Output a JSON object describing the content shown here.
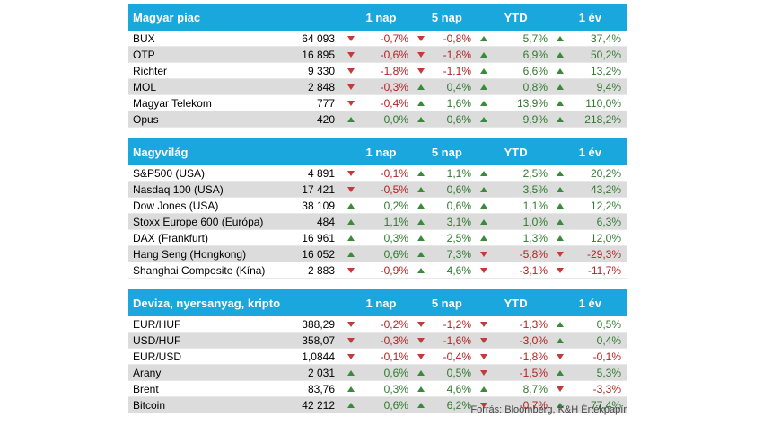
{
  "colors": {
    "header_bg": "#1aa7de",
    "up": "#3b8a3b",
    "down": "#c23b3b",
    "alt_row": "#dcdcdc"
  },
  "columns": [
    "1 nap",
    "5 nap",
    "YTD",
    "1 év"
  ],
  "sections": [
    {
      "title": "Magyar piac",
      "rows": [
        {
          "name": "BUX",
          "value": "64 093",
          "changes": [
            "-0,7%",
            "-0,8%",
            "5,7%",
            "37,4%"
          ]
        },
        {
          "name": "OTP",
          "value": "16 895",
          "changes": [
            "-0,6%",
            "-1,8%",
            "6,9%",
            "50,2%"
          ]
        },
        {
          "name": "Richter",
          "value": "9 330",
          "changes": [
            "-1,8%",
            "-1,1%",
            "6,6%",
            "13,2%"
          ]
        },
        {
          "name": "MOL",
          "value": "2 848",
          "changes": [
            "-0,3%",
            "0,4%",
            "0,8%",
            "9,4%"
          ]
        },
        {
          "name": "Magyar Telekom",
          "value": "777",
          "changes": [
            "-0,4%",
            "1,6%",
            "13,9%",
            "110,0%"
          ]
        },
        {
          "name": "Opus",
          "value": "420",
          "changes": [
            "0,0%",
            "0,6%",
            "9,9%",
            "218,2%"
          ]
        }
      ]
    },
    {
      "title": "Nagyvilág",
      "rows": [
        {
          "name": "S&P500 (USA)",
          "value": "4 891",
          "changes": [
            "-0,1%",
            "1,1%",
            "2,5%",
            "20,2%"
          ]
        },
        {
          "name": "Nasdaq 100 (USA)",
          "value": "17 421",
          "changes": [
            "-0,5%",
            "0,6%",
            "3,5%",
            "43,2%"
          ]
        },
        {
          "name": "Dow Jones (USA)",
          "value": "38 109",
          "changes": [
            "0,2%",
            "0,6%",
            "1,1%",
            "12,2%"
          ]
        },
        {
          "name": "Stoxx Europe 600 (Európa)",
          "value": "484",
          "changes": [
            "1,1%",
            "3,1%",
            "1,0%",
            "6,3%"
          ]
        },
        {
          "name": "DAX (Frankfurt)",
          "value": "16 961",
          "changes": [
            "0,3%",
            "2,5%",
            "1,3%",
            "12,0%"
          ]
        },
        {
          "name": "Hang Seng (Hongkong)",
          "value": "16 052",
          "changes": [
            "0,6%",
            "7,3%",
            "-5,8%",
            "-29,3%"
          ]
        },
        {
          "name": "Shanghai Composite (Kína)",
          "value": "2 883",
          "changes": [
            "-0,9%",
            "4,6%",
            "-3,1%",
            "-11,7%"
          ]
        }
      ]
    },
    {
      "title": "Deviza, nyersanyag, kripto",
      "rows": [
        {
          "name": "EUR/HUF",
          "value": "388,29",
          "changes": [
            "-0,2%",
            "-1,2%",
            "-1,3%",
            "0,5%"
          ]
        },
        {
          "name": "USD/HUF",
          "value": "358,07",
          "changes": [
            "-0,3%",
            "-1,6%",
            "-3,0%",
            "0,4%"
          ]
        },
        {
          "name": "EUR/USD",
          "value": "1,0844",
          "changes": [
            "-0,1%",
            "-0,4%",
            "-1,8%",
            "-0,1%"
          ]
        },
        {
          "name": "Arany",
          "value": "2 031",
          "changes": [
            "0,6%",
            "0,5%",
            "-1,5%",
            "5,3%"
          ]
        },
        {
          "name": "Brent",
          "value": "83,76",
          "changes": [
            "0,3%",
            "4,6%",
            "8,7%",
            "-3,3%"
          ]
        },
        {
          "name": "Bitcoin",
          "value": "42 212",
          "changes": [
            "0,6%",
            "6,2%",
            "-0,7%",
            "77,4%"
          ]
        }
      ]
    }
  ],
  "source": "Forrás: Bloomberg, K&H Értékpapír"
}
